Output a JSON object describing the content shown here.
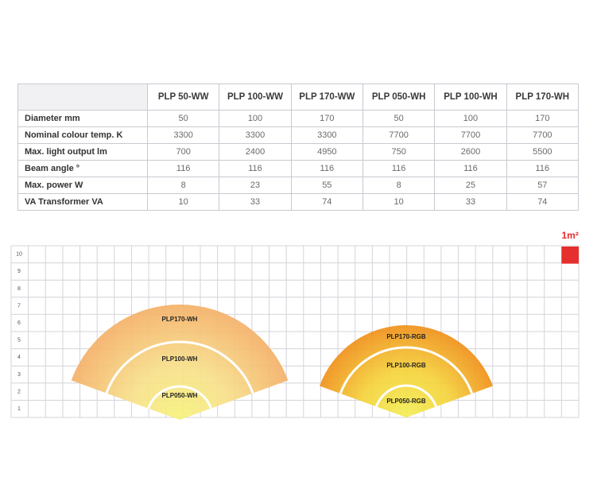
{
  "table": {
    "columns": [
      "PLP 50-WW",
      "PLP 100-WW",
      "PLP 170-WW",
      "PLP 050-WH",
      "PLP 100-WH",
      "PLP 170-WH"
    ],
    "rows": [
      {
        "label": "Diameter mm",
        "values": [
          50,
          100,
          170,
          50,
          100,
          170
        ]
      },
      {
        "label": "Nominal colour temp. K",
        "values": [
          3300,
          3300,
          3300,
          7700,
          7700,
          7700
        ]
      },
      {
        "label": "Max. light output lm",
        "values": [
          700,
          2400,
          4950,
          750,
          2600,
          5500
        ]
      },
      {
        "label": "Beam angle °",
        "values": [
          116,
          116,
          116,
          116,
          116,
          116
        ]
      },
      {
        "label": "Max. power W",
        "values": [
          8,
          23,
          55,
          8,
          25,
          57
        ]
      },
      {
        "label": "VA Transformer VA",
        "values": [
          10,
          33,
          74,
          10,
          33,
          74
        ]
      }
    ]
  },
  "diagram": {
    "scale_label": "1m²",
    "y_labels": [
      1,
      2,
      3,
      4,
      5,
      6,
      7,
      8,
      9,
      10
    ],
    "beams": [
      {
        "labels": [
          "PLP170-WH",
          "PLP100-WH",
          "PLP050-WH"
        ]
      },
      {
        "labels": [
          "PLP170-RGB",
          "PLP100-RGB",
          "PLP050-RGB"
        ]
      }
    ]
  }
}
